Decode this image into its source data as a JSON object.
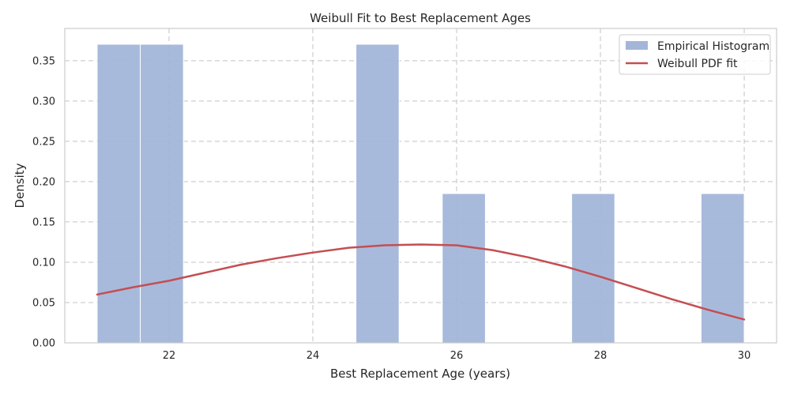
{
  "chart_data": {
    "type": "bar",
    "title": "Weibull Fit to Best Replacement Ages",
    "xlabel": "Best Replacement Age (years)",
    "ylabel": "Density",
    "xlim": [
      20.55,
      30.45
    ],
    "ylim": [
      0,
      0.39
    ],
    "x_ticks": [
      22,
      24,
      26,
      28,
      30
    ],
    "y_ticks": [
      0.0,
      0.05,
      0.1,
      0.15,
      0.2,
      0.25,
      0.3,
      0.35
    ],
    "grid": true,
    "legend_position": "top-right",
    "histogram": {
      "name": "Empirical Histogram",
      "color": "#a3b6d9",
      "bins": [
        {
          "x0": 21.0,
          "x1": 21.6,
          "value": 0.3704
        },
        {
          "x0": 21.6,
          "x1": 22.2,
          "value": 0.3704
        },
        {
          "x0": 22.2,
          "x1": 22.8,
          "value": 0.0
        },
        {
          "x0": 22.8,
          "x1": 23.4,
          "value": 0.0
        },
        {
          "x0": 23.4,
          "x1": 24.0,
          "value": 0.0
        },
        {
          "x0": 24.0,
          "x1": 24.6,
          "value": 0.0
        },
        {
          "x0": 24.6,
          "x1": 25.2,
          "value": 0.3704
        },
        {
          "x0": 25.2,
          "x1": 25.8,
          "value": 0.0
        },
        {
          "x0": 25.8,
          "x1": 26.4,
          "value": 0.1852
        },
        {
          "x0": 26.4,
          "x1": 27.0,
          "value": 0.0
        },
        {
          "x0": 27.0,
          "x1": 27.6,
          "value": 0.0
        },
        {
          "x0": 27.6,
          "x1": 28.2,
          "value": 0.1852
        },
        {
          "x0": 28.2,
          "x1": 28.8,
          "value": 0.0
        },
        {
          "x0": 28.8,
          "x1": 29.4,
          "value": 0.0
        },
        {
          "x0": 29.4,
          "x1": 30.0,
          "value": 0.1852
        }
      ]
    },
    "line": {
      "name": "Weibull PDF fit",
      "color": "#c44e52",
      "x": [
        21.0,
        21.5,
        22.0,
        22.5,
        23.0,
        23.5,
        24.0,
        24.5,
        25.0,
        25.5,
        26.0,
        26.5,
        27.0,
        27.5,
        28.0,
        28.5,
        29.0,
        29.5,
        30.0
      ],
      "y": [
        0.06,
        0.069,
        0.077,
        0.087,
        0.097,
        0.105,
        0.112,
        0.118,
        0.121,
        0.122,
        0.121,
        0.115,
        0.106,
        0.095,
        0.082,
        0.068,
        0.054,
        0.041,
        0.029
      ]
    }
  }
}
